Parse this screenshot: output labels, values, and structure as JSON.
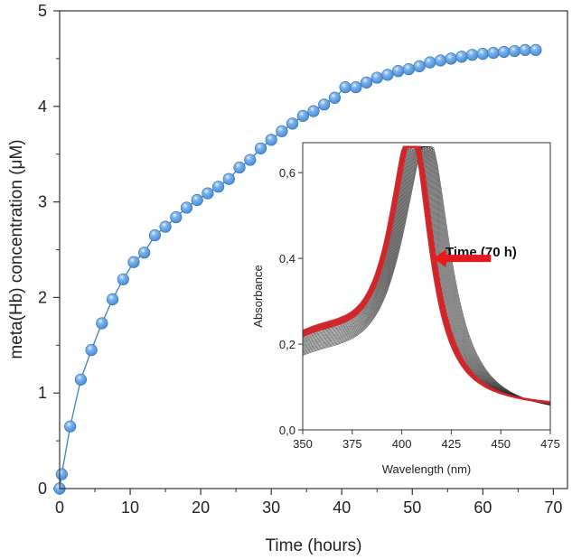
{
  "chart_data": [
    {
      "type": "scatter",
      "title": "",
      "xlabel": "Time (hours)",
      "ylabel": "meta(Hb) concentration (μM)",
      "xlim": [
        0,
        72
      ],
      "ylim": [
        0,
        5
      ],
      "x_ticks": [
        "0",
        "10",
        "20",
        "30",
        "40",
        "50",
        "60",
        "70"
      ],
      "y_ticks": [
        "0",
        "1",
        "2",
        "3",
        "4",
        "5"
      ],
      "marker_color": "#4a8fd6",
      "line_color": "#3b7fc9",
      "series": [
        {
          "x": [
            0,
            0.3,
            1.5,
            3,
            4.5,
            6,
            7.5,
            9,
            10.5,
            12,
            13.5,
            15,
            16.5,
            18,
            19.5,
            21,
            22.5,
            24,
            25.5,
            27,
            28.5,
            30,
            31.5,
            33,
            34.5,
            36,
            37.5,
            39,
            40.5,
            42,
            43.5,
            45,
            46.5,
            48,
            49.5,
            51,
            52.5,
            54,
            55.5,
            57,
            58.5,
            60,
            61.5,
            63,
            64.5,
            66,
            67.5
          ],
          "values": [
            0,
            0.15,
            0.65,
            1.14,
            1.45,
            1.73,
            1.98,
            2.19,
            2.37,
            2.47,
            2.65,
            2.74,
            2.84,
            2.94,
            3.02,
            3.09,
            3.16,
            3.24,
            3.36,
            3.44,
            3.56,
            3.65,
            3.74,
            3.82,
            3.9,
            3.95,
            4.02,
            4.09,
            4.2,
            4.2,
            4.25,
            4.3,
            4.33,
            4.37,
            4.39,
            4.42,
            4.46,
            4.48,
            4.5,
            4.52,
            4.54,
            4.55,
            4.56,
            4.57,
            4.58,
            4.59,
            4.59
          ]
        }
      ]
    },
    {
      "type": "line",
      "title": "",
      "xlabel": "Wavelength (nm)",
      "ylabel": "Absorbance",
      "xlim": [
        350,
        475
      ],
      "ylim": [
        0,
        0.67
      ],
      "x_ticks": [
        "350",
        "375",
        "400",
        "425",
        "450",
        "475"
      ],
      "y_ticks": [
        "0,0",
        "0,2",
        "0,4",
        "0,6"
      ],
      "annotation": "Time (70 h)",
      "arrow_color": "#e41a1c",
      "early_color": "#222222",
      "late_color": "#d0262a",
      "spectra_count": 24,
      "peak_start_nm": 414,
      "peak_end_nm": 405,
      "peak_start_abs": 0.64,
      "peak_end_abs": 0.625,
      "iso_point_nm": 409,
      "iso_point_abs": 0.585
    }
  ]
}
